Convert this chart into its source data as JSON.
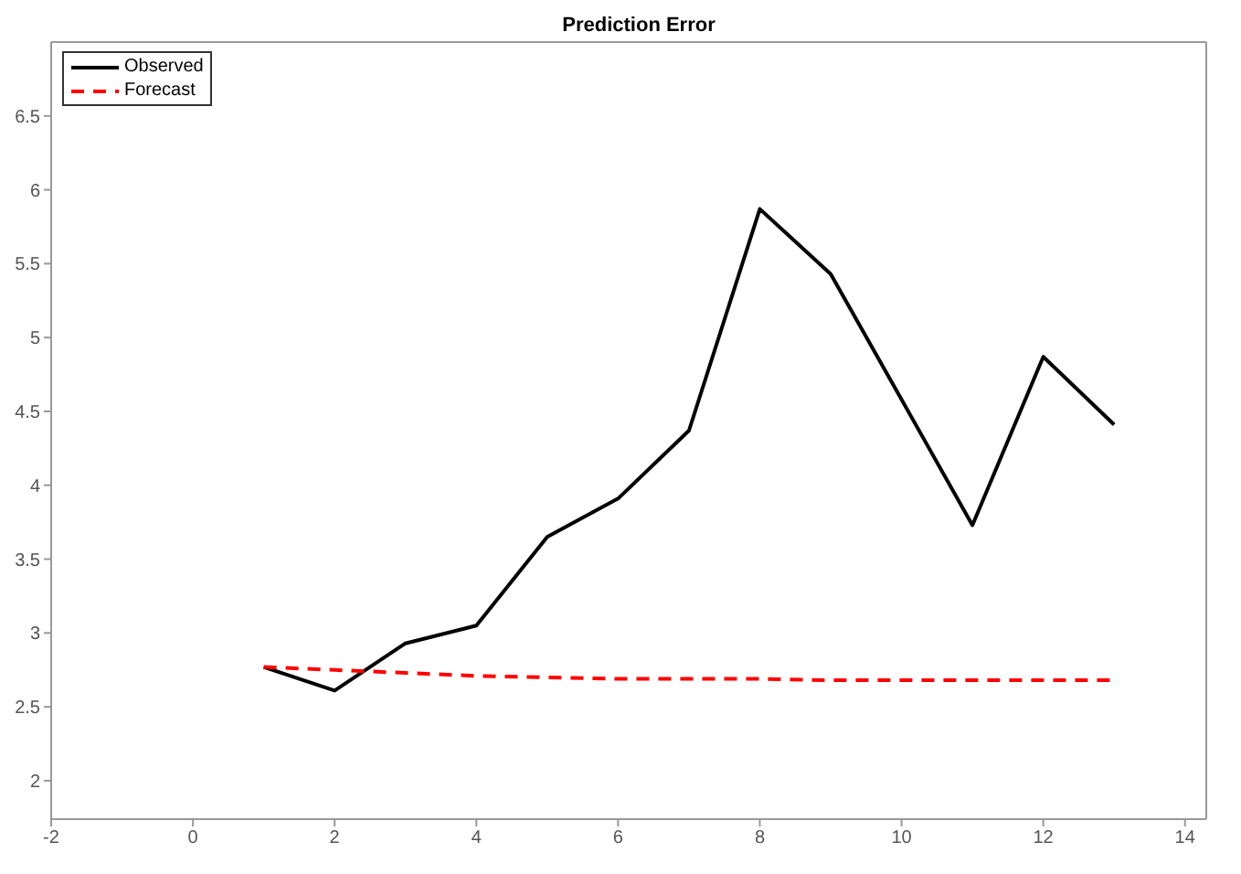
{
  "chart_data": {
    "type": "line",
    "title": "Prediction Error",
    "x": [
      1,
      2,
      3,
      4,
      5,
      6,
      7,
      8,
      9,
      10,
      11,
      12,
      13
    ],
    "series": [
      {
        "name": "Observed",
        "color": "#000000",
        "line_style": "solid",
        "values": [
          2.77,
          2.61,
          2.93,
          3.05,
          3.65,
          3.91,
          4.37,
          5.87,
          5.43,
          4.58,
          3.73,
          4.87,
          4.41
        ]
      },
      {
        "name": "Forecast",
        "color": "#ff0000",
        "line_style": "dashed",
        "values": [
          2.77,
          2.75,
          2.73,
          2.71,
          2.7,
          2.69,
          2.69,
          2.69,
          2.68,
          2.68,
          2.68,
          2.68,
          2.68
        ]
      }
    ],
    "xlim": [
      -2,
      14.3
    ],
    "xticks": [
      -2,
      0,
      2,
      4,
      6,
      8,
      10,
      12,
      14
    ],
    "ylim": [
      1.74,
      7
    ],
    "yticks": [
      2,
      2.5,
      3,
      3.5,
      4,
      4.5,
      5,
      5.5,
      6,
      6.5
    ],
    "grid": false,
    "legend": "top left",
    "marker": "none"
  }
}
